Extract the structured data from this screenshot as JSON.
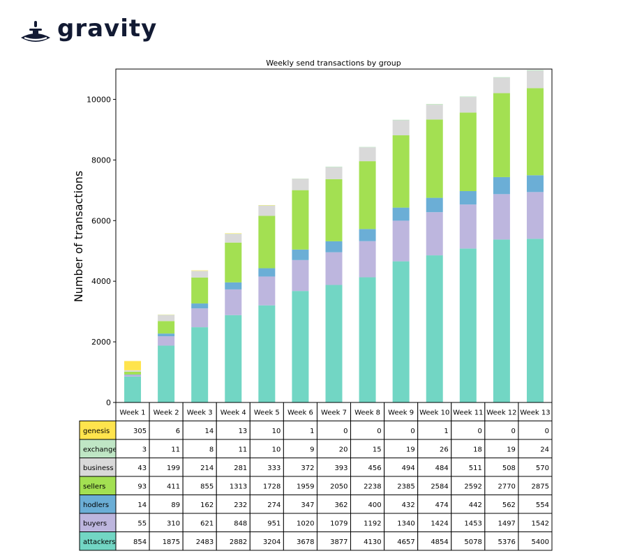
{
  "brand": {
    "name": "gravity",
    "color": "#121a33"
  },
  "chart_data": {
    "type": "bar",
    "stacked": true,
    "title": "Weekly send transactions by group",
    "xlabel": "",
    "ylabel": "Number of transactions",
    "ylim": [
      0,
      11000
    ],
    "yticks": [
      0,
      2000,
      4000,
      6000,
      8000,
      10000
    ],
    "categories": [
      "Week 1",
      "Week 2",
      "Week 3",
      "Week 4",
      "Week 5",
      "Week 6",
      "Week 7",
      "Week 8",
      "Week 9",
      "Week 10",
      "Week 11",
      "Week 12",
      "Week 13"
    ],
    "series": [
      {
        "name": "genesis",
        "color": "#ffe44d",
        "values": [
          305,
          6,
          14,
          13,
          10,
          1,
          0,
          0,
          0,
          1,
          0,
          0,
          0
        ]
      },
      {
        "name": "exchange",
        "color": "#bfe6c5",
        "values": [
          3,
          11,
          8,
          11,
          10,
          9,
          20,
          15,
          19,
          26,
          18,
          19,
          24
        ]
      },
      {
        "name": "business",
        "color": "#d9d9d9",
        "values": [
          43,
          199,
          214,
          281,
          333,
          372,
          393,
          456,
          494,
          484,
          511,
          508,
          570
        ]
      },
      {
        "name": "sellers",
        "color": "#a3e052",
        "values": [
          93,
          411,
          855,
          1313,
          1728,
          1959,
          2050,
          2238,
          2385,
          2584,
          2592,
          2770,
          2875
        ]
      },
      {
        "name": "hodlers",
        "color": "#6baed6",
        "values": [
          14,
          89,
          162,
          232,
          274,
          347,
          362,
          400,
          432,
          474,
          442,
          562,
          554
        ]
      },
      {
        "name": "buyers",
        "color": "#bdb6de",
        "values": [
          55,
          310,
          621,
          848,
          951,
          1020,
          1079,
          1192,
          1340,
          1424,
          1453,
          1497,
          1542
        ]
      },
      {
        "name": "attackers",
        "color": "#72d6c4",
        "values": [
          854,
          1875,
          2483,
          2882,
          3204,
          3678,
          3877,
          4130,
          4657,
          4854,
          5078,
          5376,
          5400
        ]
      }
    ],
    "table": true,
    "grid": false
  }
}
